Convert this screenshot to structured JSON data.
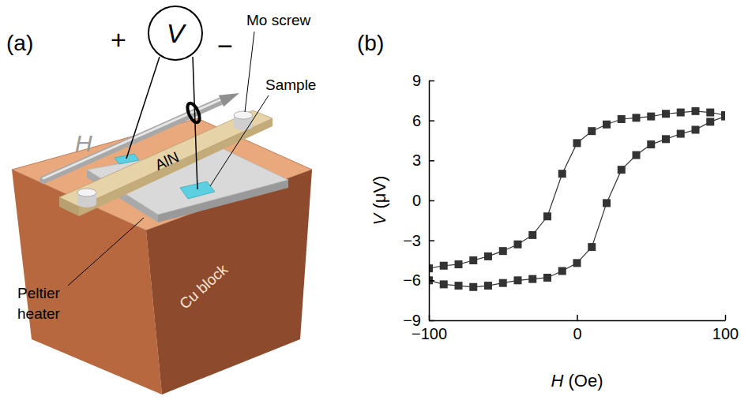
{
  "diagram": {
    "panel_label": "(a)",
    "meter": "V",
    "plus": "+",
    "minus": "−",
    "field": "H",
    "labels": {
      "mo_screw": "Mo screw",
      "sample": "Sample",
      "aln": "AlN",
      "peltier": "Peltier heater",
      "cu_block": "Cu block"
    }
  },
  "chart_data": {
    "type": "line",
    "panel_label": "(b)",
    "x_label": "H (Oe)",
    "y_label": "V (μV)",
    "x": [
      -100,
      -90,
      -80,
      -70,
      -60,
      -50,
      -40,
      -30,
      -20,
      -10,
      0,
      10,
      20,
      30,
      40,
      50,
      60,
      70,
      80,
      90,
      100
    ],
    "series": [
      {
        "color": "#333333",
        "marker": "square",
        "line_style": "solid",
        "values": [
          -5.1,
          -4.9,
          -4.8,
          -4.5,
          -4.2,
          -3.8,
          -3.3,
          -2.6,
          -1.2,
          2.0,
          4.3,
          5.2,
          5.7,
          6.1,
          6.2,
          6.3,
          6.5,
          6.6,
          6.7,
          6.6,
          6.4
        ]
      },
      {
        "color": "#333333",
        "marker": "square",
        "line_style": "solid",
        "values": [
          -6.0,
          -6.3,
          -6.4,
          -6.5,
          -6.4,
          -6.2,
          -6.0,
          -5.9,
          -5.8,
          -5.3,
          -4.7,
          -3.5,
          -0.2,
          2.3,
          3.4,
          4.2,
          4.6,
          5.0,
          5.3,
          5.9,
          6.3
        ]
      }
    ],
    "xlim": [
      -100,
      100
    ],
    "xticks": [
      {
        "value": -100,
        "label": "−100"
      },
      0,
      100
    ],
    "ylim": [
      -9,
      9
    ],
    "yticks": [
      {
        "value": -9,
        "label": "−9"
      },
      {
        "value": -6,
        "label": "−6"
      },
      {
        "value": -3,
        "label": "−3"
      },
      0,
      3,
      6,
      9
    ],
    "grid": false
  }
}
